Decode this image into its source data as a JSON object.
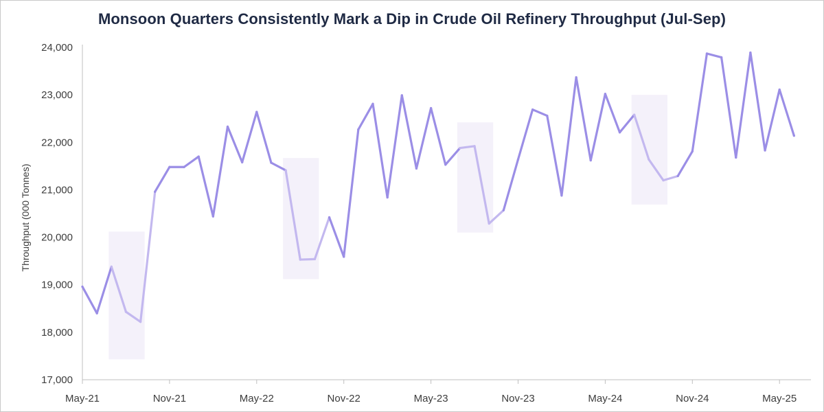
{
  "title": "Monsoon Quarters Consistently Mark a Dip in Crude Oil Refinery Throughput (Jul-Sep)",
  "chart_data": {
    "type": "line",
    "title": "Monsoon Quarters Consistently Mark a Dip in Crude Oil Refinery Throughput (Jul-Sep)",
    "xlabel": "",
    "ylabel": "Throughput (000 Tonnes)",
    "ylim": [
      17000,
      24000
    ],
    "yticks": [
      17000,
      18000,
      19000,
      20000,
      21000,
      22000,
      23000,
      24000
    ],
    "ytick_labels": [
      "17,000",
      "18,000",
      "19,000",
      "20,000",
      "21,000",
      "22,000",
      "23,000",
      "24,000"
    ],
    "xtick_labels": [
      "May-21",
      "Nov-21",
      "May-22",
      "Nov-22",
      "May-23",
      "Nov-23",
      "May-24",
      "Nov-24",
      "May-25"
    ],
    "grid": false,
    "x": [
      "2021-05",
      "2021-06",
      "2021-07",
      "2021-08",
      "2021-09",
      "2021-10",
      "2021-11",
      "2021-12",
      "2022-01",
      "2022-02",
      "2022-03",
      "2022-04",
      "2022-05",
      "2022-06",
      "2022-07",
      "2022-08",
      "2022-09",
      "2022-10",
      "2022-11",
      "2022-12",
      "2023-01",
      "2023-02",
      "2023-03",
      "2023-04",
      "2023-05",
      "2023-06",
      "2023-07",
      "2023-08",
      "2023-09",
      "2023-10",
      "2023-11",
      "2023-12",
      "2024-01",
      "2024-02",
      "2024-03",
      "2024-04",
      "2024-05",
      "2024-06",
      "2024-07",
      "2024-08",
      "2024-09",
      "2024-10",
      "2024-11",
      "2024-12",
      "2025-01",
      "2025-02",
      "2025-03",
      "2025-04",
      "2025-05",
      "2025-06"
    ],
    "series": [
      {
        "values": [
          18960,
          18400,
          19380,
          18430,
          18220,
          20960,
          21480,
          21480,
          21700,
          20440,
          22330,
          21580,
          22640,
          21570,
          21410,
          19530,
          19540,
          20420,
          19590,
          22270,
          22810,
          20840,
          22990,
          21450,
          22720,
          21530,
          21880,
          21920,
          20290,
          20570,
          21640,
          22690,
          22560,
          20880,
          23370,
          21620,
          23020,
          22210,
          22580,
          21640,
          21200,
          21290,
          21810,
          23870,
          23790,
          21680,
          23890,
          21830,
          23110,
          22140
        ]
      }
    ],
    "highlight_periods": [
      {
        "start": "2021-07",
        "end": "2021-09",
        "y_range": [
          17430,
          20120
        ]
      },
      {
        "start": "2022-07",
        "end": "2022-09",
        "y_range": [
          19120,
          21670
        ]
      },
      {
        "start": "2023-07",
        "end": "2023-09",
        "y_range": [
          20100,
          22420
        ]
      },
      {
        "start": "2024-07",
        "end": "2024-09",
        "y_range": [
          20690,
          23000
        ]
      }
    ],
    "colors": {
      "line": "#9b8ee6",
      "line_highlight": "#c3b8ef",
      "band": "#f4f1fa",
      "axis": "#bfbfbf",
      "title": "#1f2a44"
    }
  }
}
